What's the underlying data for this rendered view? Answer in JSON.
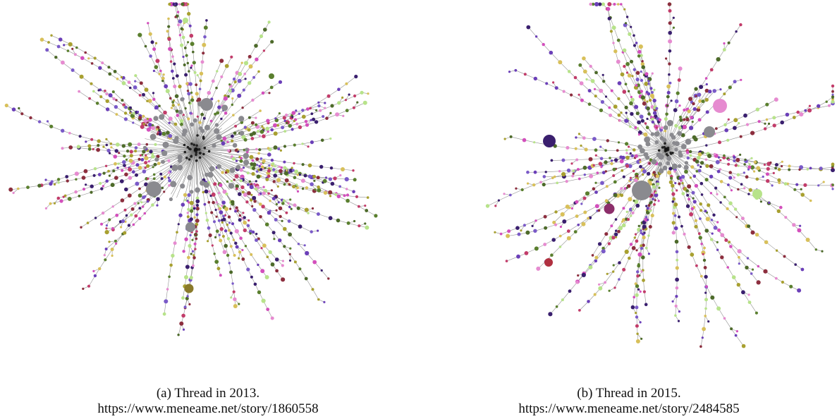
{
  "figures": [
    {
      "id": "a",
      "caption": "(a) Thread in 2013.",
      "url": "https://www.meneame.net/story/1860558"
    },
    {
      "id": "b",
      "caption": "(b) Thread in 2015.",
      "url": "https://www.meneame.net/story/2484585"
    }
  ],
  "palette": {
    "hub": "#8a8a8f",
    "edge": "#6e6e6e",
    "node_colors": [
      "#b7e38a",
      "#6b3fb8",
      "#c23c6a",
      "#5a7f2e",
      "#d34fbc",
      "#3a1f6e",
      "#a8a030",
      "#8c2e3e",
      "#7a5ac8",
      "#e68bd0",
      "#4d6a2a",
      "#d8c05a"
    ]
  },
  "graph_style": {
    "type": "radial-tree",
    "panel_a_hub_count": "many",
    "panel_b_hub_count": "few"
  }
}
